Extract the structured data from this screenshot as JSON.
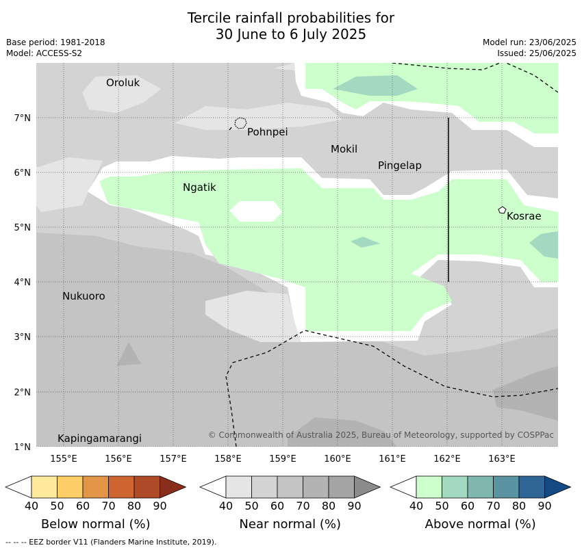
{
  "title_line1": "Tercile rainfall probabilities for",
  "title_line2": "30 June to 6 July 2025",
  "base_period": "Base period: 1981-2018",
  "model": "Model: ACCESS-S2",
  "model_run": "Model run: 23/06/2025",
  "issued": "Issued: 25/06/2025",
  "copyright": "© Commonwealth of Australia 2025, Bureau of Meteorology, supported by COSPPac",
  "footnote": "-- -- -- EEZ border V11 (Flanders Marine Institute, 2019).",
  "x_ticks": [
    "155°E",
    "156°E",
    "157°E",
    "158°E",
    "159°E",
    "160°E",
    "161°E",
    "162°E",
    "163°E"
  ],
  "y_ticks": [
    "7°N",
    "6°N",
    "5°N",
    "4°N",
    "3°N",
    "2°N",
    "1°N"
  ],
  "places": [
    "Oroluk",
    "Pohnpei",
    "Mokil",
    "Pingelap",
    "Ngatik",
    "Kosrae",
    "Nukuoro",
    "Kapingamarangi"
  ],
  "colorbars": [
    {
      "title": "Below normal (%)",
      "labels": [
        "40",
        "50",
        "60",
        "70",
        "80",
        "90"
      ],
      "colors": [
        "#ffffff",
        "#fee99d",
        "#fdcd66",
        "#e39547",
        "#cf6531",
        "#b04b29",
        "#8a2e1c"
      ]
    },
    {
      "title": "Near normal (%)",
      "labels": [
        "40",
        "50",
        "60",
        "70",
        "80",
        "90"
      ],
      "colors": [
        "#ffffff",
        "#e5e5e5",
        "#d3d3d3",
        "#c4c4c4",
        "#b3b3b3",
        "#a4a4a4",
        "#8c8c8c"
      ]
    },
    {
      "title": "Above normal (%)",
      "labels": [
        "40",
        "50",
        "60",
        "70",
        "80",
        "90"
      ],
      "colors": [
        "#ffffff",
        "#ccffcc",
        "#a2d9c0",
        "#80b8b0",
        "#5a93a2",
        "#2f6597",
        "#134a82"
      ]
    }
  ],
  "map_colors": {
    "near_40": "#e5e5e5",
    "near_50": "#d3d3d3",
    "near_60": "#c4c4c4",
    "near_70": "#b3b3b3",
    "near_80": "#a4a4a4",
    "above_50": "#ccffcc",
    "above_60": "#a2d9c0"
  }
}
